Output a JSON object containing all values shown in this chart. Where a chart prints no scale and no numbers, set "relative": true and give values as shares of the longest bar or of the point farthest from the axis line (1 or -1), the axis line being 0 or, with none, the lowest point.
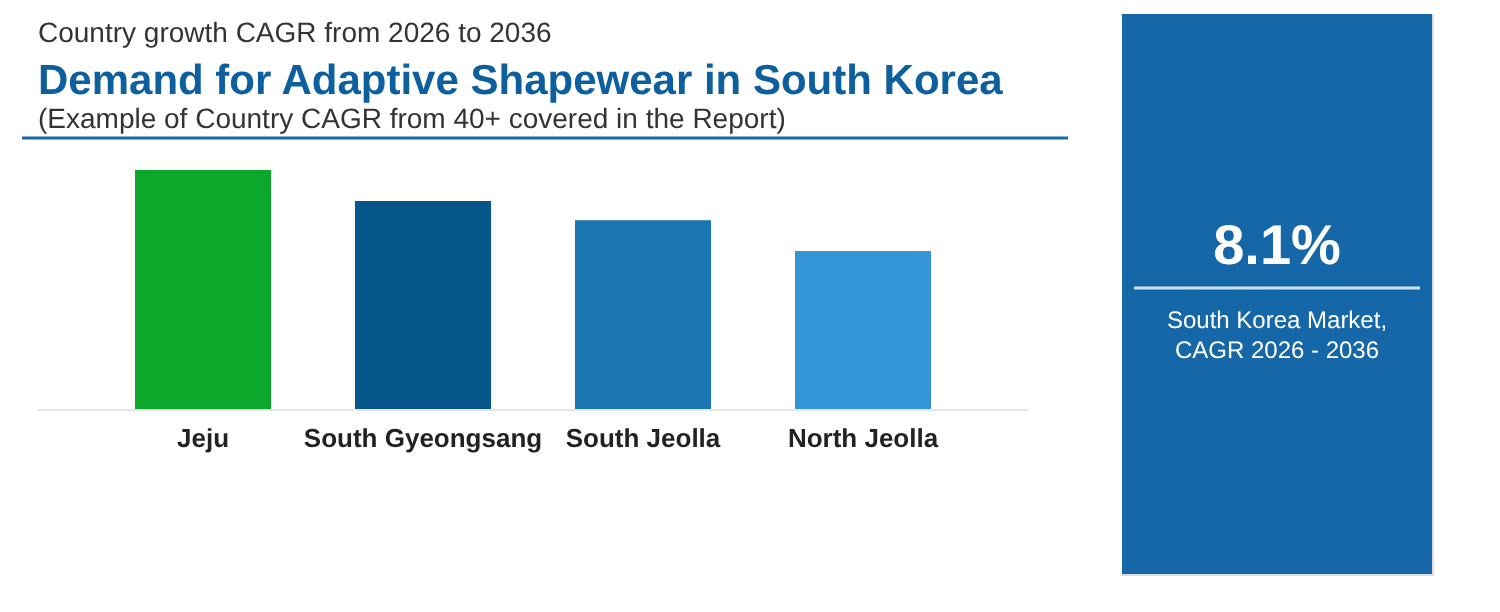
{
  "chart_data": [
    {
      "type": "bar",
      "subtitle": "Country growth CAGR from 2026 to 2036",
      "title": "Demand for Adaptive Shapewear in South Korea",
      "annotations": [
        "(Example of Country CAGR from 40+ covered in the Report)"
      ],
      "categories": [
        "Jeju",
        "South Gyeongsang",
        "South Jeolla",
        "North Jeolla"
      ],
      "relative": true,
      "values": [
        1,
        0.871,
        0.791,
        0.662
      ],
      "colors": [
        "#0ca82c",
        "#07578c",
        "#1b75b1",
        "#3395d6"
      ]
    },
    {
      "type": "other",
      "title": "8.1%",
      "annotations": [
        "South Korea Market,",
        "CAGR 2026 - 2036"
      ]
    }
  ]
}
